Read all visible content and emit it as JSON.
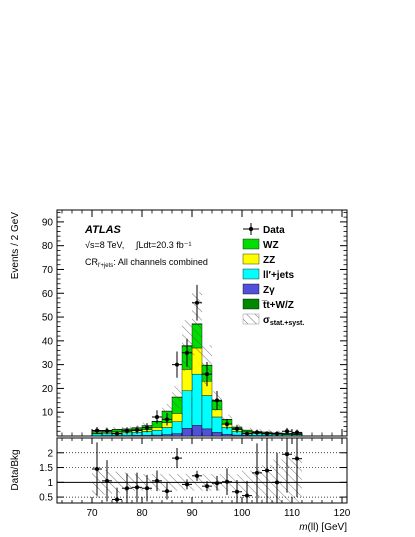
{
  "chart_data": {
    "type": "bar",
    "subtype": "stacked histogram with data points and ratio panel",
    "experiment": "ATLAS",
    "energy_text": "√s=8 TeV,",
    "lumi_text": "∫Ldt=20.3 fb⁻¹",
    "region_main": "CR",
    "region_sub": "l′+jets",
    "region_tail": ": All channels combined",
    "xlabel_italic": "m",
    "xlabel_rest": "(ll) [GeV]",
    "ylabel": "Events / 2 GeV",
    "ratio_ylabel": "Data/Bkg",
    "xlim": [
      63,
      121
    ],
    "ylim": [
      0,
      95
    ],
    "ratio_ylim": [
      0.3,
      2.5
    ],
    "xticks": [
      70,
      80,
      90,
      100,
      110,
      120
    ],
    "yticks": [
      10,
      20,
      30,
      40,
      50,
      60,
      70,
      80,
      90
    ],
    "ratio_yticks": [
      0.5,
      1,
      1.5,
      2
    ],
    "ratio_ytick_labels": [
      "0.5",
      "1",
      "1.5",
      "2"
    ],
    "bin_edges": [
      70,
      72,
      74,
      76,
      78,
      80,
      82,
      84,
      86,
      88,
      90,
      92,
      94,
      96,
      98,
      100,
      102,
      104,
      106,
      108,
      110,
      112
    ],
    "series": [
      {
        "name": "Zγ",
        "color": "#5050d8",
        "values": [
          0.1,
          0.2,
          0.2,
          0.2,
          0.3,
          0.3,
          0.4,
          0.6,
          1.0,
          3.2,
          4.5,
          3.0,
          1.5,
          0.7,
          0.4,
          0.3,
          0.2,
          0.2,
          0.1,
          0.1,
          0.1
        ]
      },
      {
        "name": "ll′+jets",
        "color": "#00ffff",
        "values": [
          0.8,
          1.0,
          1.1,
          1.2,
          1.3,
          1.6,
          2.0,
          3.0,
          5.0,
          15.8,
          21.5,
          14.0,
          6.5,
          3.0,
          1.6,
          1.1,
          0.8,
          0.7,
          0.6,
          0.5,
          0.4
        ]
      },
      {
        "name": "ZZ",
        "color": "#ffff00",
        "values": [
          0.3,
          0.4,
          0.5,
          0.5,
          0.6,
          0.8,
          1.2,
          2.0,
          3.5,
          9.0,
          11.0,
          6.0,
          3.0,
          1.3,
          0.7,
          0.4,
          0.3,
          0.3,
          0.2,
          0.2,
          0.2
        ]
      },
      {
        "name": "WZ",
        "color": "#00dd00",
        "values": [
          0.6,
          0.7,
          0.9,
          1.0,
          1.2,
          1.6,
          2.5,
          4.8,
          6.8,
          9.8,
          10.0,
          6.7,
          3.6,
          1.9,
          1.0,
          0.6,
          0.5,
          0.4,
          0.3,
          0.3,
          0.3
        ]
      },
      {
        "name": "t̅t+W/Z",
        "color": "#008800",
        "values": [
          0.1,
          0.1,
          0.1,
          0.1,
          0.1,
          0.1,
          0.1,
          0.1,
          0.1,
          0.2,
          0.2,
          0.1,
          0.1,
          0.1,
          0.1,
          0.1,
          0.1,
          0.1,
          0.1,
          0.1,
          0.1
        ]
      }
    ],
    "legend": [
      {
        "label": "Data",
        "kind": "data"
      },
      {
        "label": "WZ",
        "kind": "fill",
        "color": "#00dd00"
      },
      {
        "label": "ZZ",
        "kind": "fill",
        "color": "#ffff00"
      },
      {
        "label": "ll′+jets",
        "kind": "fill",
        "color": "#00ffff"
      },
      {
        "label": "Zγ",
        "kind": "fill",
        "color": "#5050d8"
      },
      {
        "label": "t̅t+W/Z",
        "kind": "fill",
        "color": "#008800"
      },
      {
        "label": "σ",
        "sub": "stat.+syst.",
        "kind": "hatch"
      }
    ],
    "data": {
      "x": [
        71,
        73,
        75,
        77,
        79,
        81,
        83,
        85,
        87,
        89,
        91,
        93,
        95,
        97,
        99,
        101,
        103,
        105,
        107,
        109,
        111
      ],
      "y": [
        2.3,
        2.1,
        1.0,
        2.2,
        2.5,
        3.5,
        8.0,
        7.0,
        30.0,
        35.0,
        56.0,
        26.0,
        15.0,
        5.0,
        3.0,
        1.0,
        1.5,
        1.0,
        1.0,
        2.0,
        1.5
      ],
      "yerr": [
        1.5,
        1.4,
        1.0,
        1.5,
        1.6,
        1.9,
        2.8,
        2.6,
        5.5,
        5.9,
        7.5,
        5.1,
        3.9,
        2.2,
        1.7,
        1.0,
        1.2,
        1.0,
        1.0,
        1.4,
        1.2
      ]
    },
    "ratio": {
      "x": [
        71,
        73,
        75,
        77,
        79,
        81,
        83,
        85,
        87,
        89,
        91,
        93,
        95,
        97,
        99,
        101,
        103,
        105,
        107,
        109,
        111
      ],
      "y": [
        1.45,
        1.05,
        0.42,
        0.8,
        0.83,
        0.8,
        1.05,
        0.7,
        1.82,
        0.93,
        1.22,
        0.87,
        0.97,
        1.02,
        0.68,
        0.55,
        1.32,
        1.4,
        1.0,
        1.95,
        1.8
      ],
      "yerr": [
        0.9,
        0.7,
        0.4,
        0.5,
        0.5,
        0.45,
        0.35,
        0.28,
        0.34,
        0.17,
        0.17,
        0.17,
        0.25,
        0.45,
        0.4,
        0.5,
        1.0,
        1.2,
        1.0,
        1.3,
        1.3
      ]
    },
    "grid": false,
    "legend_position": "top-right"
  }
}
